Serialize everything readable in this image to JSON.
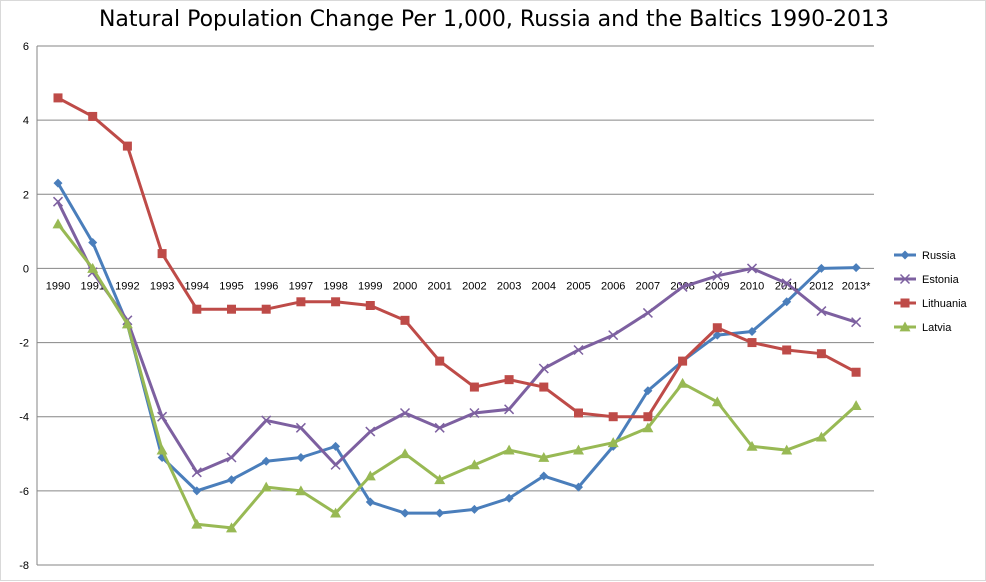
{
  "chart_data": {
    "type": "line",
    "title": "Natural Population Change Per 1,000, Russia and the Baltics 1990-2013",
    "xlabel": "",
    "ylabel": "",
    "ylim": [
      -8,
      6
    ],
    "yticks": [
      6,
      4,
      2,
      0,
      -2,
      -4,
      -6,
      -8
    ],
    "grid": true,
    "legend_position": "right",
    "categories": [
      "1990",
      "1991",
      "1992",
      "1993",
      "1994",
      "1995",
      "1996",
      "1997",
      "1998",
      "1999",
      "2000",
      "2001",
      "2002",
      "2003",
      "2004",
      "2005",
      "2006",
      "2007",
      "2008",
      "2009",
      "2010",
      "2011",
      "2012",
      "2013*"
    ],
    "series": [
      {
        "name": "Russia",
        "color": "#4a7ebb",
        "marker": "diamond",
        "values": [
          2.3,
          0.7,
          -1.5,
          -5.1,
          -6.0,
          -5.7,
          -5.2,
          -5.1,
          -4.8,
          -6.3,
          -6.6,
          -6.6,
          -6.5,
          -6.2,
          -5.6,
          -5.9,
          -4.8,
          -3.3,
          -2.5,
          -1.8,
          -1.7,
          -0.9,
          0.0,
          0.02
        ]
      },
      {
        "name": "Estonia",
        "color": "#7d60a0",
        "marker": "x",
        "values": [
          1.8,
          -0.1,
          -1.4,
          -4.0,
          -5.5,
          -5.1,
          -4.1,
          -4.3,
          -5.3,
          -4.4,
          -3.9,
          -4.3,
          -3.9,
          -3.8,
          -2.7,
          -2.2,
          -1.8,
          -1.2,
          -0.5,
          -0.2,
          0.0,
          -0.4,
          -1.15,
          -1.45
        ]
      },
      {
        "name": "Lithuania",
        "color": "#be4b48",
        "marker": "square",
        "values": [
          4.6,
          4.1,
          3.3,
          0.4,
          -1.1,
          -1.1,
          -1.1,
          -0.9,
          -0.9,
          -1.0,
          -1.4,
          -2.5,
          -3.2,
          -3.0,
          -3.2,
          -3.9,
          -4.0,
          -4.0,
          -2.5,
          -1.6,
          -2.0,
          -2.2,
          -2.3,
          -2.8
        ]
      },
      {
        "name": "Latvia",
        "color": "#98b954",
        "marker": "triangle",
        "values": [
          1.2,
          0.0,
          -1.5,
          -4.9,
          -6.9,
          -7.0,
          -5.9,
          -6.0,
          -6.6,
          -5.6,
          -5.0,
          -5.7,
          -5.3,
          -4.9,
          -5.1,
          -4.9,
          -4.7,
          -4.3,
          -3.1,
          -3.6,
          -4.8,
          -4.9,
          -4.55,
          -3.7
        ]
      }
    ]
  }
}
